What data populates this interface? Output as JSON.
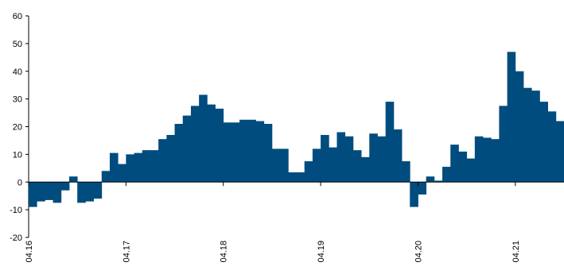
{
  "chart_data": {
    "type": "bar",
    "title": "",
    "xlabel": "",
    "ylabel": "",
    "ylim": [
      -20,
      60
    ],
    "yticks": [
      -20,
      -10,
      0,
      10,
      20,
      30,
      40,
      50,
      60
    ],
    "grid": false,
    "legend": "none",
    "bar_color": "#004c7e",
    "xtick_labels": [
      {
        "label": "04.16",
        "index": 0
      },
      {
        "label": "04.17",
        "index": 12
      },
      {
        "label": "04.18",
        "index": 24
      },
      {
        "label": "04.19",
        "index": 36
      },
      {
        "label": "04.20",
        "index": 48
      },
      {
        "label": "04.21",
        "index": 60
      }
    ],
    "values": [
      -9,
      -7,
      -6.5,
      -7.5,
      -3,
      2,
      -7.5,
      -7,
      -6,
      4,
      10.5,
      6.5,
      10,
      10.5,
      11.5,
      11.5,
      15.5,
      17,
      21,
      24,
      27.5,
      31.5,
      28,
      26.5,
      21.5,
      21.5,
      22.5,
      22.5,
      22,
      21,
      12,
      12,
      3.5,
      3.5,
      7.5,
      12,
      17,
      12.5,
      18,
      16.5,
      11.5,
      9,
      17.5,
      16.5,
      29,
      19,
      7.5,
      -9,
      -4.5,
      2,
      0.5,
      5.5,
      13.5,
      11,
      8.5,
      16.5,
      16,
      15.5,
      27.5,
      47,
      40,
      34,
      33,
      29,
      25.5,
      22
    ]
  }
}
